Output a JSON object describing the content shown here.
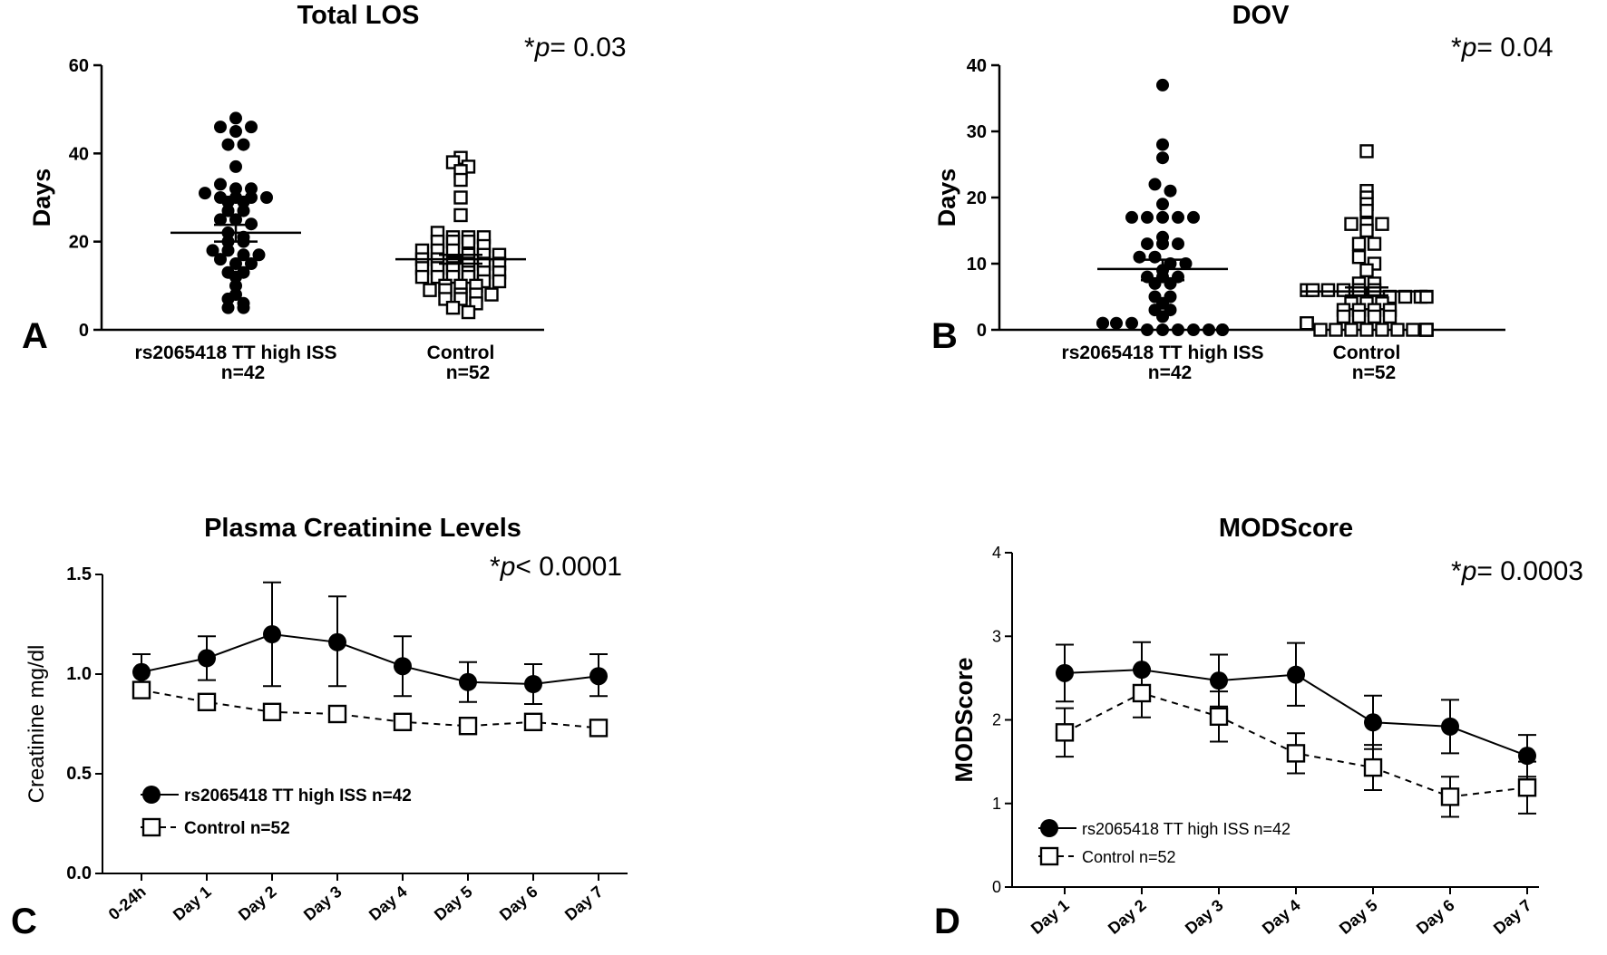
{
  "chart_data": [
    {
      "panel": "A",
      "type": "scatter",
      "title": "Total LOS",
      "p_prefix": "*",
      "p_symbol": "p",
      "p_value": "= 0.03",
      "ylabel": "Days",
      "ylim": [
        0,
        60
      ],
      "yticks": [
        0,
        20,
        40,
        60
      ],
      "groups": [
        {
          "name": "rs2065418  TT high ISS",
          "n_label": "n=42",
          "marker": "filled-circle",
          "mean": 22,
          "sem_low": 20,
          "sem_high": 23.8,
          "values": [
            48,
            46,
            45,
            46,
            42,
            42,
            37,
            33,
            32,
            32,
            31,
            30,
            30,
            30,
            30,
            29,
            29,
            27,
            27,
            25,
            25,
            24,
            22,
            21,
            20,
            20,
            18,
            18,
            17,
            17,
            16,
            15,
            15,
            13,
            13,
            12,
            10,
            8,
            7,
            6,
            5,
            5
          ]
        },
        {
          "name": "Control",
          "n_label": "n=52",
          "marker": "open-square",
          "mean": 16,
          "sem_low": 15,
          "sem_high": 17,
          "values": [
            39,
            38,
            37,
            36,
            34,
            30,
            26,
            22,
            21,
            21,
            21,
            20,
            20,
            20,
            19,
            18,
            18,
            18,
            17,
            17,
            17,
            16,
            16,
            15,
            15,
            15,
            15,
            14,
            14,
            14,
            13,
            13,
            13,
            12,
            12,
            12,
            12,
            11,
            11,
            10,
            10,
            10,
            9,
            9,
            8,
            8,
            8,
            7,
            7,
            6,
            5,
            4
          ]
        }
      ]
    },
    {
      "panel": "B",
      "type": "scatter",
      "title": "DOV",
      "p_prefix": "*",
      "p_symbol": "p",
      "p_value": "= 0.04",
      "ylabel": "Days",
      "ylim": [
        0,
        40
      ],
      "yticks": [
        0,
        10,
        20,
        30,
        40
      ],
      "groups": [
        {
          "name": "rs2065418  TT high ISS",
          "n_label": "n=42",
          "marker": "filled-circle",
          "mean": 9.2,
          "sem_low": 7.5,
          "sem_high": 10.6,
          "values": [
            37,
            28,
            26,
            22,
            21,
            19,
            17,
            17,
            17,
            17,
            17,
            14,
            13,
            13,
            13,
            11,
            11,
            10,
            10,
            9,
            8,
            8,
            8,
            7,
            7,
            5,
            5,
            4,
            3,
            3,
            2,
            1,
            1,
            1,
            1,
            0,
            0,
            0,
            0,
            0,
            0,
            0
          ]
        },
        {
          "name": "Control",
          "n_label": "n=52",
          "marker": "open-square",
          "mean": 5.8,
          "sem_low": 5.2,
          "sem_high": 6.4,
          "values": [
            27,
            21,
            20,
            19,
            18,
            16,
            16,
            16,
            15,
            13,
            13,
            11,
            10,
            9,
            7,
            7,
            6,
            6,
            6,
            6,
            6,
            6,
            5,
            5,
            5,
            5,
            4,
            4,
            4,
            3,
            3,
            3,
            3,
            2,
            2,
            2,
            2,
            1,
            1,
            1,
            1,
            0,
            0,
            0,
            0,
            0,
            0,
            0,
            0,
            0,
            0,
            0
          ]
        }
      ]
    },
    {
      "panel": "C",
      "type": "line",
      "title": "Plasma Creatinine Levels",
      "p_prefix": "*",
      "p_symbol": "p",
      "p_value": "< 0.0001",
      "ylabel": "Creatinine mg/dl",
      "ylim": [
        0,
        1.5
      ],
      "yticks": [
        "0.0",
        "0.5",
        "1.0",
        "1.5"
      ],
      "categories": [
        "0-24h",
        "Day 1",
        "Day 2",
        "Day 3",
        "Day 4",
        "Day 5",
        "Day 6",
        "Day 7"
      ],
      "series": [
        {
          "name": "rs2065418 TT high ISS n=42",
          "marker": "filled-circle",
          "line": "solid",
          "values": [
            1.01,
            1.08,
            1.2,
            1.16,
            1.04,
            0.96,
            0.95,
            0.99
          ],
          "err_low": [
            0.92,
            0.97,
            0.94,
            0.94,
            0.89,
            0.86,
            0.85,
            0.89
          ],
          "err_high": [
            1.1,
            1.19,
            1.46,
            1.39,
            1.19,
            1.06,
            1.05,
            1.1
          ]
        },
        {
          "name": "Control n=52",
          "marker": "open-square",
          "line": "dashed",
          "values": [
            0.92,
            0.86,
            0.81,
            0.8,
            0.76,
            0.74,
            0.76,
            0.73
          ],
          "err_low": [
            0.89,
            0.83,
            0.78,
            0.77,
            0.73,
            0.71,
            0.73,
            0.7
          ],
          "err_high": [
            0.95,
            0.89,
            0.84,
            0.83,
            0.79,
            0.77,
            0.79,
            0.76
          ]
        }
      ]
    },
    {
      "panel": "D",
      "type": "line",
      "title": "MODScore",
      "p_prefix": "*",
      "p_symbol": "p",
      "p_value": "= 0.0003",
      "ylabel": "MODScore",
      "ylim": [
        0,
        4
      ],
      "yticks": [
        0,
        1,
        2,
        3,
        4
      ],
      "categories": [
        "Day 1",
        "Day 2",
        "Day 3",
        "Day 4",
        "Day 5",
        "Day 6",
        "Day 7"
      ],
      "series": [
        {
          "name": "rs2065418 TT high ISS n=42",
          "marker": "filled-circle",
          "line": "solid",
          "values": [
            2.56,
            2.6,
            2.47,
            2.54,
            1.97,
            1.92,
            1.57
          ],
          "err_low": [
            2.22,
            2.27,
            2.16,
            2.17,
            1.65,
            1.6,
            1.32
          ],
          "err_high": [
            2.9,
            2.93,
            2.78,
            2.92,
            2.29,
            2.24,
            1.82
          ]
        },
        {
          "name": "Control n=52",
          "marker": "open-square",
          "line": "dashed",
          "values": [
            1.85,
            2.32,
            2.04,
            1.6,
            1.43,
            1.08,
            1.19
          ],
          "err_low": [
            1.56,
            2.03,
            1.74,
            1.36,
            1.16,
            0.84,
            0.88
          ],
          "err_high": [
            2.14,
            2.61,
            2.34,
            1.84,
            1.7,
            1.32,
            1.5
          ]
        }
      ]
    }
  ]
}
